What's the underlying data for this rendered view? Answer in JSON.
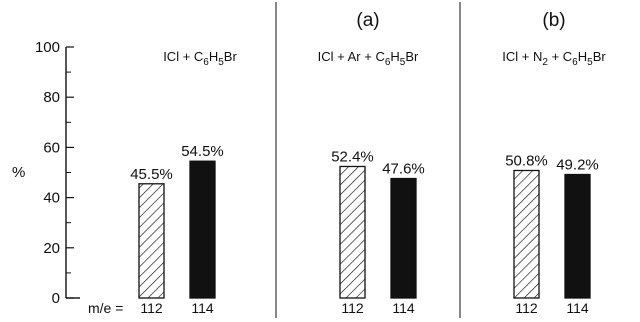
{
  "chart_data": {
    "type": "bar",
    "ylabel": "%",
    "ylim": [
      0,
      100
    ],
    "yticks": [
      0,
      20,
      40,
      60,
      80,
      100
    ],
    "xlabel_prefix": "m/e =",
    "categories": [
      "112",
      "114"
    ],
    "panels": [
      {
        "tag": "",
        "title_parts": [
          "ICl + C",
          "6",
          "H",
          "5",
          "Br"
        ],
        "values": [
          45.5,
          54.5
        ],
        "labels": [
          "45.5%",
          "54.5%"
        ]
      },
      {
        "tag": "(a)",
        "title_parts": [
          "ICl + Ar + C",
          "6",
          "H",
          "5",
          "Br"
        ],
        "values": [
          52.4,
          47.6
        ],
        "labels": [
          "52.4%",
          "47.6%"
        ]
      },
      {
        "tag": "(b)",
        "title_parts": [
          "ICl + N",
          "2",
          " + C",
          "6",
          "H",
          "5",
          "Br"
        ],
        "values": [
          50.8,
          49.2
        ],
        "labels": [
          "50.8%",
          "49.2%"
        ]
      }
    ],
    "fills": [
      "hatched",
      "solid"
    ],
    "colors": {
      "ink": "#111111",
      "background": "#ffffff"
    }
  }
}
